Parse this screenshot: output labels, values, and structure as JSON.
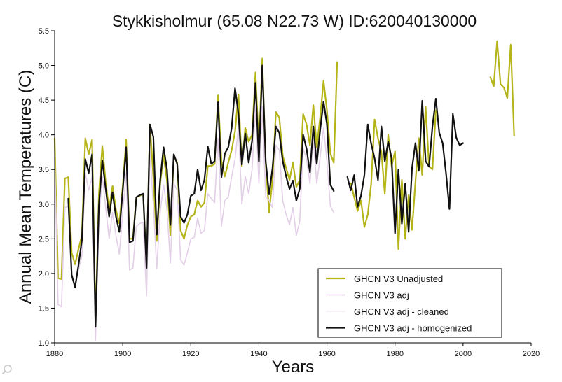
{
  "chart_data": {
    "type": "line",
    "title": "Stykkisholmur (65.08 N22.73 W) ID:620040130000",
    "xlabel": "Years",
    "ylabel": "Annual Mean Temperatures (C)",
    "xlim": [
      1880,
      2020
    ],
    "ylim": [
      1.0,
      5.5
    ],
    "x_ticks": [
      1880,
      1900,
      1920,
      1940,
      1960,
      1980,
      2000,
      2020
    ],
    "y_ticks": [
      "1.0",
      "1.5",
      "2.0",
      "2.5",
      "3.0",
      "3.5",
      "4.0",
      "4.5",
      "5.0",
      "5.5"
    ],
    "grid": false,
    "legend_position": "bottom-right",
    "series": [
      {
        "name": "GHCN V3 Unadjusted",
        "color": "#b5b51a",
        "width": 2.2,
        "segments": [
          {
            "x_start": 1880,
            "values": [
              3.95,
              1.93,
              1.92,
              3.37,
              3.39,
              2.3,
              2.13,
              2.35,
              2.55,
              3.95,
              3.72,
              3.93,
              1.27,
              3.15,
              3.84,
              3.31,
              2.92,
              3.26,
              2.92,
              2.72,
              3.25,
              3.93,
              2.5,
              2.5,
              3.1,
              3.12,
              3.15,
              2.1,
              4.15,
              3.38,
              2.47,
              3.3,
              3.7,
              3.34,
              2.55,
              3.7,
              3.6,
              2.62,
              2.5,
              2.7,
              2.82,
              2.85,
              3.05,
              2.96,
              3.02,
              3.55,
              3.55,
              3.58,
              4.57,
              3.62,
              3.4,
              3.6,
              3.78,
              4.05,
              4.58,
              3.55,
              4.1,
              3.9,
              4.0,
              4.9,
              3.8,
              5.1,
              3.6,
              2.88,
              3.35,
              4.33,
              4.25,
              3.7,
              3.52,
              3.35,
              3.6,
              3.25,
              3.35,
              4.3,
              4.15,
              3.85,
              4.43,
              3.82,
              4.25,
              4.78,
              4.35,
              3.73,
              3.6,
              5.05
            ]
          },
          {
            "x_start": 1967,
            "values": [
              3.3,
              3.1,
              2.9,
              3.05,
              2.67,
              2.85,
              3.3,
              4.22,
              3.95,
              3.75,
              3.15,
              4.0,
              3.55,
              3.76,
              2.35,
              3.35,
              2.5,
              3.13,
              2.63,
              3.32,
              3.95,
              3.42,
              4.4,
              3.55,
              3.5,
              4.35
            ]
          },
          {
            "x_start": 2008,
            "values": [
              4.83,
              4.7,
              5.35,
              4.73,
              4.68,
              4.53,
              5.3,
              3.99
            ]
          }
        ]
      },
      {
        "name": "GHCN V3 adj",
        "color": "#e3cfe7",
        "width": 1.6,
        "segments": [
          {
            "x_start": 1880,
            "values": [
              3.7,
              1.55,
              1.52,
              2.95,
              2.97,
              1.96,
              1.84,
              2.05,
              2.25,
              3.45,
              3.2,
              3.4,
              1.03,
              2.78,
              3.4,
              2.95,
              2.5,
              2.88,
              2.55,
              2.28,
              2.88,
              3.45,
              2.05,
              2.08,
              2.68,
              2.72,
              2.74,
              1.68,
              3.75,
              2.98,
              2.07,
              2.88,
              3.28,
              2.92,
              2.15,
              3.3,
              3.2,
              2.2,
              2.12,
              2.3,
              2.5,
              2.52,
              2.8,
              2.58,
              2.62,
              3.15,
              3.08,
              3.02,
              3.95,
              2.68,
              3.05,
              3.1,
              3.4,
              3.65,
              4.12,
              3.0,
              3.4,
              3.15,
              3.5,
              4.4,
              3.3,
              4.4,
              3.1,
              3.05,
              2.95,
              3.85,
              3.78,
              3.05,
              2.85,
              2.7,
              2.95,
              2.55,
              2.75,
              3.8,
              3.65,
              3.3,
              3.95,
              3.3,
              3.68,
              4.1,
              3.62,
              2.97,
              2.88
            ]
          }
        ]
      },
      {
        "name": "GHCN V3 adj - cleaned",
        "color": "#f2e6f0",
        "width": 1.2,
        "segments": []
      },
      {
        "name": "GHCN V3 adj - homogenized",
        "color": "#111111",
        "width": 2.2,
        "segments": [
          {
            "x_start": 1884,
            "values": [
              3.08,
              1.98,
              1.8,
              2.12,
              2.48,
              3.65,
              3.45,
              3.72,
              1.23,
              2.98,
              3.63,
              3.22,
              2.82,
              3.17,
              2.82,
              2.6,
              3.2,
              3.82,
              2.45,
              2.47,
              3.1,
              3.13,
              3.15,
              2.08,
              4.15,
              3.97,
              2.56,
              3.35,
              3.82,
              3.5,
              2.7,
              3.72,
              3.58,
              2.82,
              2.73,
              2.85,
              3.12,
              3.15,
              3.5,
              3.2,
              3.35,
              3.83,
              3.58,
              3.62,
              4.47,
              3.39,
              3.73,
              3.82,
              4.1,
              4.67,
              4.3,
              3.57,
              4.02,
              3.6,
              3.91,
              4.75,
              3.62,
              5.0,
              3.62,
              3.14,
              3.52,
              4.12,
              4.03,
              3.62,
              3.4,
              3.22,
              3.34,
              3.05,
              3.22,
              4.0,
              3.8,
              3.46,
              4.12,
              3.58,
              4.07,
              4.48,
              4.15,
              3.28,
              3.19
            ]
          },
          {
            "x_start": 1966,
            "values": [
              3.39,
              3.2,
              3.42,
              2.96,
              3.12,
              3.42,
              4.15,
              3.87,
              3.66,
              3.35,
              4.12,
              3.62,
              3.9,
              3.66,
              2.58,
              3.5,
              2.72,
              3.3,
              2.6,
              3.52,
              3.88,
              3.48,
              4.49,
              3.62,
              3.54,
              4.12,
              4.52,
              4.03,
              3.88,
              3.44,
              2.93,
              4.3,
              3.96,
              3.85,
              3.88
            ]
          }
        ]
      }
    ]
  }
}
